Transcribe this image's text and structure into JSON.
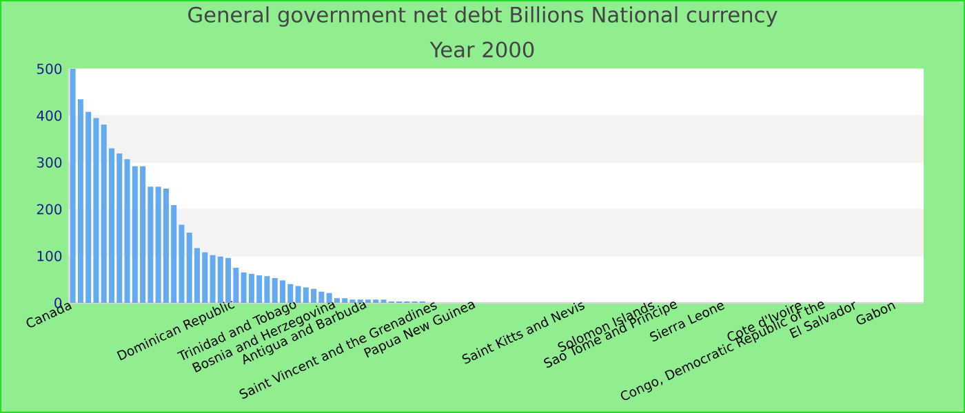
{
  "chart_data": {
    "type": "bar",
    "title": "General government net debt Billions National currency",
    "subtitle": "Year 2000",
    "categories": [
      "Canada",
      null,
      null,
      null,
      null,
      null,
      null,
      null,
      null,
      null,
      null,
      null,
      null,
      null,
      null,
      null,
      null,
      null,
      null,
      null,
      null,
      "Dominican Republic",
      null,
      null,
      null,
      null,
      null,
      null,
      null,
      "Trinidad and Tobago",
      null,
      null,
      null,
      null,
      "Bosnia and Herzegovina",
      null,
      null,
      null,
      "Antigua and Barbuda",
      null,
      null,
      null,
      null,
      null,
      null,
      null,
      null,
      "Saint Vincent and the Grenadines",
      null,
      null,
      null,
      null,
      "Papua New Guinea",
      null,
      null,
      null,
      null,
      null,
      null,
      null,
      null,
      null,
      null,
      null,
      null,
      null,
      "Saint Kitts and Nevis",
      null,
      null,
      null,
      null,
      null,
      null,
      null,
      null,
      "Solomon Islands",
      null,
      null,
      "Sao Tome and Principe",
      null,
      null,
      null,
      null,
      null,
      "Sierra Leone",
      null,
      null,
      null,
      null,
      null,
      null,
      null,
      null,
      null,
      "Cote d'Ivoire",
      null,
      null,
      "Congo, Democratic Republic of the",
      null,
      null,
      null,
      "El Salvador",
      null,
      null,
      null,
      null,
      "Gabon",
      null,
      null,
      null
    ],
    "values": [
      500,
      435,
      408,
      395,
      381,
      330,
      319,
      307,
      292,
      292,
      248,
      248,
      244,
      209,
      167,
      150,
      117,
      108,
      102,
      99,
      96,
      75,
      65,
      62,
      59,
      57,
      53,
      48,
      40,
      36,
      33,
      30,
      24,
      21,
      10,
      10,
      7,
      7,
      7,
      7,
      7,
      3,
      3,
      3,
      3,
      3,
      null,
      null,
      null,
      null,
      null,
      null,
      null,
      null,
      null,
      null,
      null,
      null,
      null,
      null,
      null,
      null,
      null,
      null,
      null,
      null,
      null,
      null,
      null,
      null,
      null,
      null,
      null,
      null,
      null,
      null,
      null,
      null,
      null,
      null,
      null,
      null,
      null,
      null,
      null,
      null,
      null,
      null,
      null,
      null,
      null,
      null,
      null,
      null,
      null,
      null,
      null,
      null,
      null,
      null,
      null,
      null,
      null,
      null,
      null,
      null,
      null,
      null,
      null,
      null
    ],
    "color": "#63aaf0",
    "ylim": [
      0,
      500
    ],
    "yticks": [
      0,
      100,
      200,
      300,
      400,
      500
    ],
    "grid": true
  }
}
